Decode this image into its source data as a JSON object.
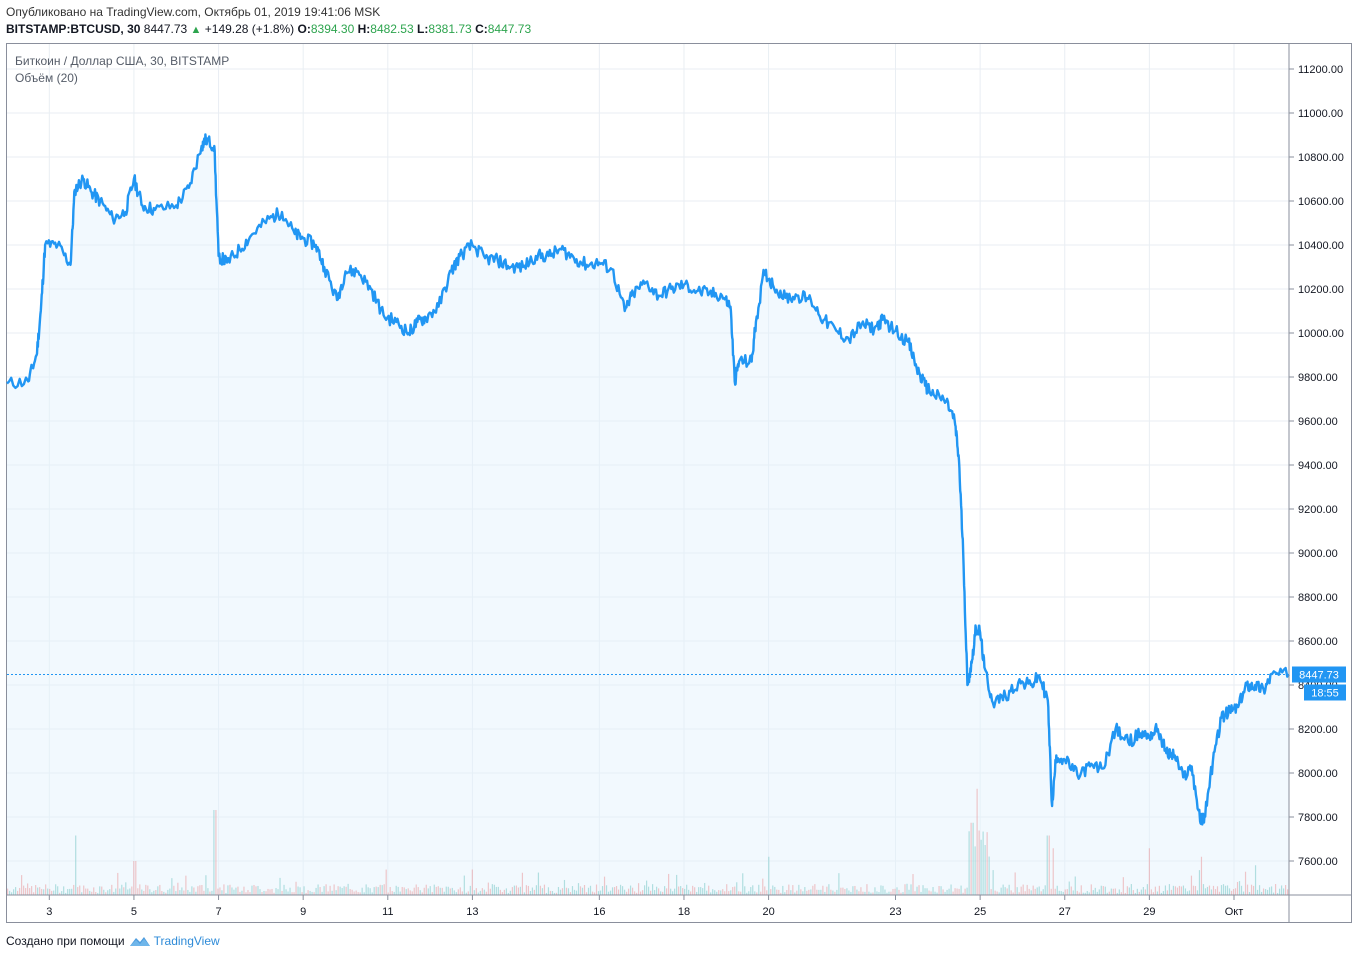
{
  "header": {
    "published": "Опубликовано на TradingView.com, Октябрь 01, 2019 19:41:06 MSK",
    "symbol": "BITSTAMP:BTCUSD, 30",
    "last": "8447.73",
    "change": "+149.28 (+1.8%)",
    "o_label": "O:",
    "o_value": "8394.30",
    "h_label": "H:",
    "h_value": "8482.53",
    "l_label": "L:",
    "l_value": "8381.73",
    "c_label": "C:",
    "c_value": "8447.73"
  },
  "legend": {
    "title": "Биткоин / Доллар США, 30, BITSTAMP",
    "volume": "Объём (20)"
  },
  "price_badge": {
    "value": "8447.73",
    "countdown": "18:55"
  },
  "footer": {
    "created": "Создано при помощи",
    "brand": "TradingView"
  },
  "colors": {
    "line": "#2196f3",
    "area": "#e3f2fd",
    "grid": "#e9eef3",
    "badge": "#2196f3",
    "vol_up": "#26a69a",
    "vol_down": "#ef5350"
  },
  "chart_data": {
    "type": "area",
    "title": "Биткоин / Доллар США, 30, BITSTAMP",
    "xlabel": "",
    "ylabel": "",
    "ylim": [
      7450,
      11300
    ],
    "xlim": [
      2.0,
      32.3
    ],
    "y_ticks": [
      "11200.00",
      "11000.00",
      "10800.00",
      "10600.00",
      "10400.00",
      "10200.00",
      "10000.00",
      "9800.00",
      "9600.00",
      "9400.00",
      "9200.00",
      "9000.00",
      "8800.00",
      "8600.00",
      "8400.00",
      "8200.00",
      "8000.00",
      "7800.00",
      "7600.00"
    ],
    "x_ticks": [
      {
        "day": 3,
        "label": "3"
      },
      {
        "day": 5,
        "label": "5"
      },
      {
        "day": 7,
        "label": "7"
      },
      {
        "day": 9,
        "label": "9"
      },
      {
        "day": 11,
        "label": "11"
      },
      {
        "day": 13,
        "label": "13"
      },
      {
        "day": 16,
        "label": "16"
      },
      {
        "day": 18,
        "label": "18"
      },
      {
        "day": 20,
        "label": "20"
      },
      {
        "day": 23,
        "label": "23"
      },
      {
        "day": 25,
        "label": "25"
      },
      {
        "day": 27,
        "label": "27"
      },
      {
        "day": 29,
        "label": "29"
      },
      {
        "day": 31,
        "label": "Окт"
      }
    ],
    "series": [
      {
        "name": "BTCUSD",
        "points": [
          [
            2.0,
            9770
          ],
          [
            2.5,
            9780
          ],
          [
            2.7,
            9900
          ],
          [
            2.8,
            10100
          ],
          [
            2.9,
            10400
          ],
          [
            3.2,
            10400
          ],
          [
            3.5,
            10310
          ],
          [
            3.6,
            10650
          ],
          [
            3.8,
            10700
          ],
          [
            4.0,
            10640
          ],
          [
            4.2,
            10600
          ],
          [
            4.5,
            10520
          ],
          [
            4.8,
            10550
          ],
          [
            5.0,
            10700
          ],
          [
            5.2,
            10580
          ],
          [
            5.5,
            10560
          ],
          [
            6.0,
            10580
          ],
          [
            6.3,
            10660
          ],
          [
            6.6,
            10850
          ],
          [
            6.7,
            10880
          ],
          [
            6.9,
            10850
          ],
          [
            7.0,
            10350
          ],
          [
            7.2,
            10320
          ],
          [
            7.5,
            10380
          ],
          [
            7.8,
            10450
          ],
          [
            8.2,
            10520
          ],
          [
            8.5,
            10550
          ],
          [
            8.8,
            10450
          ],
          [
            9.0,
            10430
          ],
          [
            9.3,
            10400
          ],
          [
            9.5,
            10300
          ],
          [
            9.8,
            10150
          ],
          [
            10.0,
            10280
          ],
          [
            10.3,
            10280
          ],
          [
            10.6,
            10200
          ],
          [
            10.9,
            10080
          ],
          [
            11.2,
            10050
          ],
          [
            11.5,
            10000
          ],
          [
            11.7,
            10050
          ],
          [
            11.9,
            10070
          ],
          [
            12.2,
            10120
          ],
          [
            12.5,
            10280
          ],
          [
            12.7,
            10350
          ],
          [
            13.0,
            10400
          ],
          [
            13.3,
            10340
          ],
          [
            13.6,
            10330
          ],
          [
            13.9,
            10300
          ],
          [
            14.2,
            10300
          ],
          [
            14.5,
            10350
          ],
          [
            14.8,
            10350
          ],
          [
            15.1,
            10380
          ],
          [
            15.4,
            10340
          ],
          [
            15.7,
            10310
          ],
          [
            16.0,
            10320
          ],
          [
            16.3,
            10290
          ],
          [
            16.6,
            10100
          ],
          [
            16.8,
            10180
          ],
          [
            17.1,
            10230
          ],
          [
            17.4,
            10170
          ],
          [
            17.7,
            10200
          ],
          [
            18.0,
            10220
          ],
          [
            18.3,
            10190
          ],
          [
            18.6,
            10180
          ],
          [
            18.9,
            10170
          ],
          [
            19.1,
            10120
          ],
          [
            19.2,
            9780
          ],
          [
            19.3,
            9870
          ],
          [
            19.6,
            9870
          ],
          [
            19.7,
            10050
          ],
          [
            19.9,
            10280
          ],
          [
            20.1,
            10220
          ],
          [
            20.4,
            10160
          ],
          [
            20.7,
            10170
          ],
          [
            21.0,
            10150
          ],
          [
            21.3,
            10060
          ],
          [
            21.6,
            10010
          ],
          [
            21.9,
            9970
          ],
          [
            22.2,
            10040
          ],
          [
            22.5,
            10020
          ],
          [
            22.7,
            10060
          ],
          [
            23.0,
            10010
          ],
          [
            23.3,
            9960
          ],
          [
            23.5,
            9840
          ],
          [
            23.7,
            9760
          ],
          [
            23.9,
            9720
          ],
          [
            24.2,
            9690
          ],
          [
            24.4,
            9600
          ],
          [
            24.5,
            9420
          ],
          [
            24.6,
            9000
          ],
          [
            24.7,
            8400
          ],
          [
            24.8,
            8500
          ],
          [
            24.9,
            8660
          ],
          [
            25.0,
            8640
          ],
          [
            25.1,
            8480
          ],
          [
            25.3,
            8320
          ],
          [
            25.6,
            8350
          ],
          [
            25.9,
            8410
          ],
          [
            26.2,
            8400
          ],
          [
            26.4,
            8440
          ],
          [
            26.6,
            8330
          ],
          [
            26.7,
            7850
          ],
          [
            26.8,
            8080
          ],
          [
            27.0,
            8060
          ],
          [
            27.3,
            7990
          ],
          [
            27.6,
            8030
          ],
          [
            27.9,
            8020
          ],
          [
            28.2,
            8200
          ],
          [
            28.5,
            8140
          ],
          [
            28.8,
            8180
          ],
          [
            29.0,
            8170
          ],
          [
            29.2,
            8200
          ],
          [
            29.4,
            8090
          ],
          [
            29.6,
            8080
          ],
          [
            29.8,
            7980
          ],
          [
            30.0,
            8030
          ],
          [
            30.2,
            7780
          ],
          [
            30.3,
            7800
          ],
          [
            30.5,
            8050
          ],
          [
            30.7,
            8250
          ],
          [
            30.9,
            8280
          ],
          [
            31.1,
            8300
          ],
          [
            31.3,
            8400
          ],
          [
            31.5,
            8400
          ],
          [
            31.7,
            8380
          ],
          [
            31.9,
            8450
          ],
          [
            32.3,
            8447.73
          ]
        ]
      }
    ],
    "volume_series": {
      "name": "Объём (20)",
      "spikes": [
        [
          3.6,
          0.7
        ],
        [
          5.0,
          0.4
        ],
        [
          6.9,
          1.0
        ],
        [
          13.0,
          0.3
        ],
        [
          20.0,
          0.45
        ],
        [
          24.8,
          0.85
        ],
        [
          24.9,
          1.25
        ],
        [
          25.0,
          0.65
        ],
        [
          26.6,
          0.7
        ],
        [
          26.7,
          0.55
        ],
        [
          29.0,
          0.55
        ],
        [
          30.2,
          0.45
        ],
        [
          31.5,
          0.35
        ]
      ]
    },
    "current_price": 8447.73
  }
}
